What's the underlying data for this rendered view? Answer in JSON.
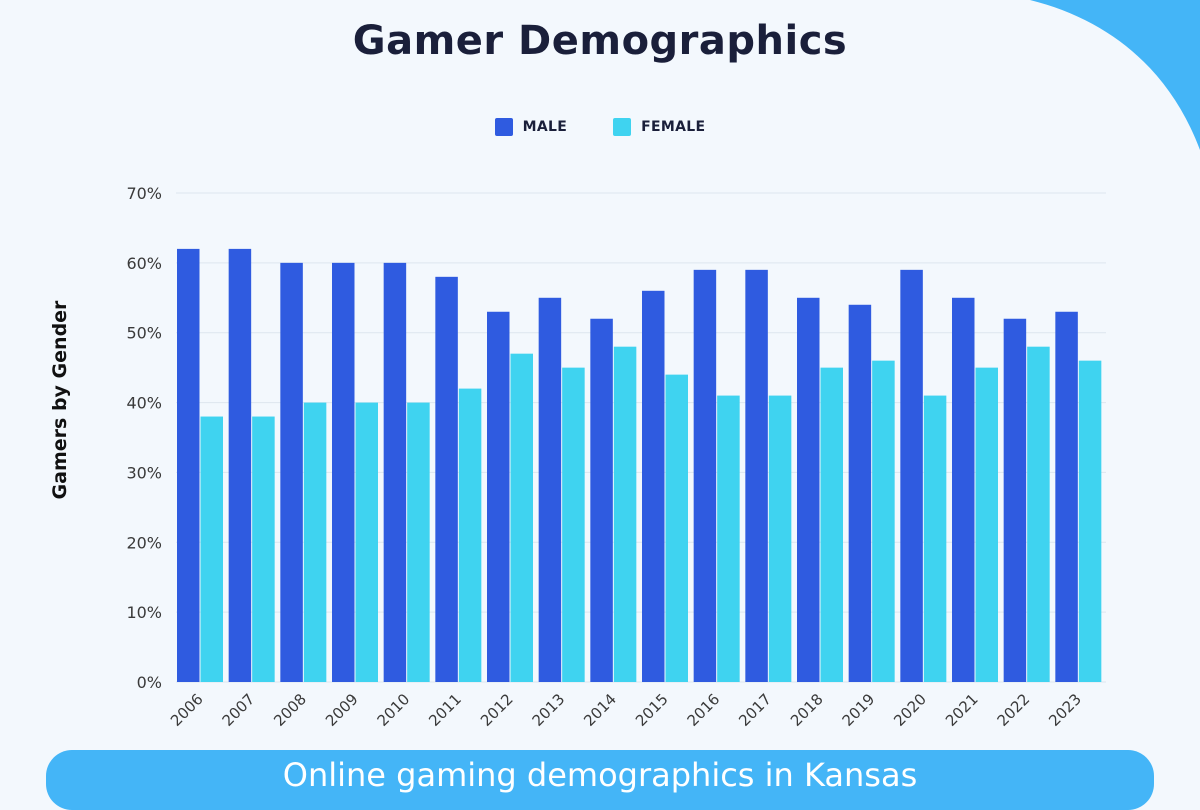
{
  "chart_data": {
    "type": "bar",
    "title": "Gamer Demographics",
    "ylabel": "Gamers by Gender",
    "xlabel": "",
    "ylim": [
      0,
      70
    ],
    "yticks": [
      "0%",
      "10%",
      "20%",
      "30%",
      "40%",
      "50%",
      "60%",
      "70%"
    ],
    "grid": true,
    "legend_position": "top-center",
    "categories": [
      "2006",
      "2007",
      "2008",
      "2009",
      "2010",
      "2011",
      "2012",
      "2013",
      "2014",
      "2015",
      "2016",
      "2017",
      "2018",
      "2019",
      "2020",
      "2021",
      "2022",
      "2023"
    ],
    "series": [
      {
        "name": "MALE",
        "color": "#2f5be0",
        "values": [
          62,
          62,
          60,
          60,
          60,
          58,
          53,
          55,
          52,
          56,
          59,
          59,
          55,
          54,
          59,
          55,
          52,
          53
        ]
      },
      {
        "name": "FEMALE",
        "color": "#3fd3f0",
        "values": [
          38,
          38,
          40,
          40,
          40,
          42,
          47,
          45,
          48,
          44,
          41,
          41,
          45,
          46,
          41,
          45,
          48,
          46
        ]
      }
    ]
  },
  "banner": {
    "text": "Online gaming demographics in Kansas",
    "color": "#44b5f7"
  },
  "accent_corner_color": "#44b5f7"
}
